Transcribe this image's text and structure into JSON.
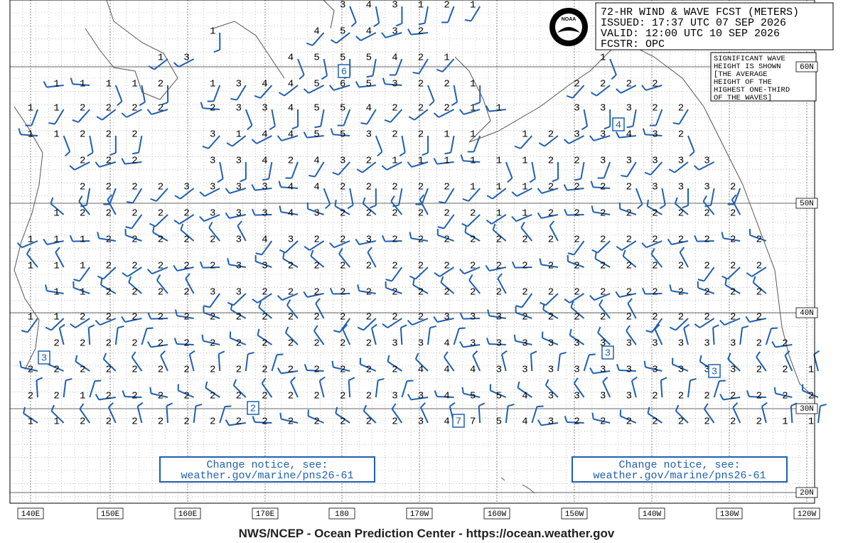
{
  "header": {
    "lines": [
      "72-HR WIND & WAVE FCST (METERS)",
      "ISSUED: 17:37 UTC 07 SEP 2026",
      "VALID:  12:00 UTC 10 SEP 2026",
      "FCSTR:  OPC"
    ],
    "logo": "NOAA"
  },
  "note": {
    "lines": [
      "SIGNIFICANT WAVE",
      "HEIGHT IS SHOWN",
      "[THE AVERAGE",
      "HEIGHT OF THE",
      "HIGHEST ONE-THIRD",
      "OF THE WAVES]"
    ]
  },
  "notices": [
    {
      "lines": [
        "Change notice, see:",
        "weather.gov/marine/pns26-61"
      ]
    },
    {
      "lines": [
        "Change notice, see:",
        "weather.gov/marine/pns26-61"
      ]
    }
  ],
  "lat_labels": [
    "60N",
    "50N",
    "40N",
    "30N",
    "20N"
  ],
  "lon_labels": [
    "140E",
    "150E",
    "160E",
    "170E",
    "180",
    "170W",
    "160W",
    "150W",
    "140W",
    "130W",
    "120W"
  ],
  "waves": {
    "rows": [
      [
        null,
        null,
        null,
        null,
        null,
        null,
        null,
        null,
        null,
        null,
        null,
        null,
        3,
        4,
        3,
        1,
        2,
        1,
        null,
        null,
        null,
        null,
        null,
        null,
        null,
        null,
        null,
        null,
        null,
        null,
        null
      ],
      [
        null,
        null,
        null,
        null,
        null,
        null,
        null,
        1,
        null,
        null,
        null,
        4,
        5,
        4,
        3,
        2,
        null,
        null,
        null,
        null,
        null,
        null,
        null,
        null,
        null,
        null,
        null,
        null,
        null,
        null,
        null
      ],
      [
        null,
        null,
        null,
        null,
        null,
        1,
        3,
        null,
        null,
        null,
        4,
        5,
        5,
        5,
        4,
        2,
        1,
        null,
        null,
        null,
        null,
        null,
        1,
        null,
        null,
        null,
        null,
        null,
        null,
        null,
        null
      ],
      [
        null,
        1,
        1,
        1,
        1,
        2,
        null,
        1,
        3,
        4,
        4,
        5,
        6,
        5,
        3,
        2,
        2,
        1,
        null,
        null,
        null,
        2,
        2,
        2,
        2,
        null,
        null,
        null,
        null,
        null,
        null
      ],
      [
        1,
        1,
        2,
        2,
        2,
        2,
        null,
        2,
        3,
        3,
        4,
        5,
        5,
        4,
        2,
        2,
        2,
        1,
        1,
        null,
        null,
        3,
        3,
        3,
        2,
        2,
        null,
        null,
        null,
        null,
        null
      ],
      [
        1,
        1,
        2,
        2,
        2,
        null,
        null,
        3,
        1,
        4,
        4,
        5,
        5,
        3,
        2,
        2,
        1,
        1,
        null,
        1,
        2,
        3,
        3,
        4,
        3,
        2,
        null,
        null,
        null,
        null,
        null
      ],
      [
        null,
        null,
        2,
        2,
        2,
        null,
        null,
        3,
        3,
        4,
        2,
        4,
        3,
        2,
        1,
        1,
        1,
        1,
        1,
        1,
        2,
        2,
        3,
        3,
        3,
        3,
        3,
        null,
        null,
        null,
        null
      ],
      [
        null,
        null,
        2,
        2,
        2,
        2,
        3,
        3,
        3,
        3,
        4,
        4,
        2,
        2,
        2,
        2,
        2,
        1,
        1,
        1,
        2,
        2,
        2,
        2,
        3,
        3,
        3,
        2,
        null,
        null,
        null
      ],
      [
        null,
        1,
        2,
        2,
        2,
        2,
        2,
        3,
        3,
        3,
        4,
        3,
        2,
        2,
        2,
        2,
        2,
        2,
        1,
        1,
        2,
        2,
        2,
        2,
        2,
        2,
        2,
        2,
        null,
        null,
        null
      ],
      [
        1,
        1,
        1,
        2,
        2,
        2,
        2,
        2,
        3,
        4,
        3,
        2,
        2,
        3,
        2,
        2,
        2,
        2,
        2,
        2,
        2,
        2,
        2,
        2,
        2,
        2,
        2,
        2,
        2,
        null,
        null
      ],
      [
        1,
        1,
        1,
        2,
        2,
        2,
        2,
        2,
        3,
        3,
        2,
        2,
        2,
        2,
        2,
        2,
        2,
        2,
        2,
        2,
        2,
        2,
        2,
        2,
        2,
        2,
        2,
        2,
        2,
        null,
        null
      ],
      [
        null,
        1,
        1,
        2,
        2,
        2,
        2,
        3,
        3,
        2,
        2,
        2,
        2,
        2,
        2,
        2,
        2,
        2,
        2,
        2,
        2,
        2,
        2,
        2,
        2,
        2,
        2,
        2,
        2,
        null,
        null
      ],
      [
        1,
        1,
        2,
        2,
        2,
        2,
        2,
        2,
        2,
        2,
        2,
        2,
        2,
        2,
        2,
        2,
        3,
        3,
        3,
        2,
        2,
        2,
        2,
        2,
        2,
        2,
        2,
        2,
        2,
        null,
        null
      ],
      [
        null,
        2,
        2,
        2,
        2,
        2,
        2,
        2,
        2,
        2,
        2,
        2,
        2,
        2,
        3,
        3,
        4,
        3,
        3,
        3,
        3,
        3,
        3,
        3,
        3,
        3,
        3,
        3,
        2,
        2,
        null
      ],
      [
        2,
        2,
        2,
        2,
        2,
        2,
        2,
        2,
        2,
        2,
        2,
        2,
        2,
        2,
        2,
        4,
        4,
        4,
        3,
        3,
        3,
        3,
        3,
        3,
        3,
        3,
        3,
        3,
        2,
        2,
        1
      ],
      [
        2,
        2,
        1,
        2,
        2,
        2,
        2,
        2,
        2,
        2,
        2,
        2,
        2,
        2,
        3,
        3,
        4,
        5,
        5,
        4,
        3,
        3,
        3,
        3,
        2,
        2,
        2,
        2,
        2,
        2,
        2
      ],
      [
        1,
        1,
        2,
        2,
        2,
        2,
        2,
        2,
        2,
        2,
        2,
        2,
        2,
        2,
        2,
        3,
        4,
        7,
        5,
        4,
        3,
        2,
        2,
        2,
        2,
        2,
        2,
        2,
        2,
        1,
        1
      ]
    ],
    "maxima": [
      6,
      4,
      3,
      2,
      3,
      3,
      7
    ]
  },
  "footer": "NWS/NCEP - Ocean Prediction Center - https://ocean.weather.gov"
}
